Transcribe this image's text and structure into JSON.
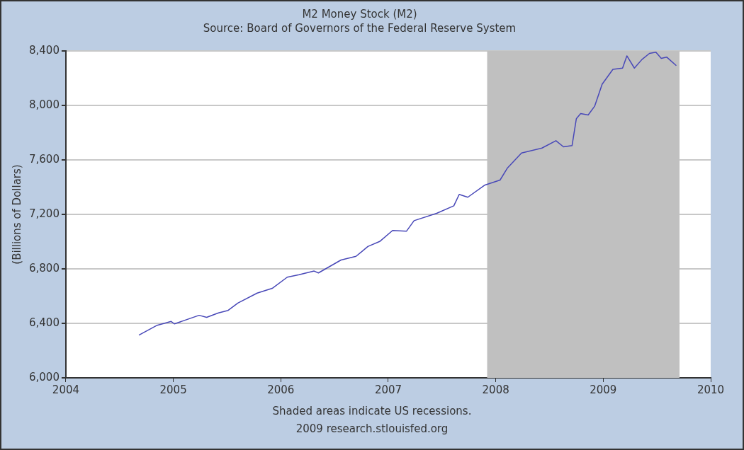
{
  "chart_data": {
    "type": "line",
    "title": "M2 Money Stock (M2)",
    "subtitle": "Source: Board of Governors of the Federal Reserve System",
    "ylabel": "(Billions of Dollars)",
    "x": [
      2004.68,
      2004.85,
      2004.98,
      2005.01,
      2005.24,
      2005.31,
      2005.42,
      2005.51,
      2005.6,
      2005.78,
      2005.92,
      2006.06,
      2006.17,
      2006.31,
      2006.35,
      2006.56,
      2006.7,
      2006.81,
      2006.92,
      2007.04,
      2007.17,
      2007.24,
      2007.45,
      2007.61,
      2007.66,
      2007.74,
      2007.9,
      2008.04,
      2008.11,
      2008.24,
      2008.43,
      2008.56,
      2008.63,
      2008.71,
      2008.75,
      2008.79,
      2008.86,
      2008.92,
      2008.99,
      2009.09,
      2009.18,
      2009.22,
      2009.29,
      2009.36,
      2009.43,
      2009.49,
      2009.54,
      2009.59,
      2009.68
    ],
    "series": [
      {
        "color": "#4848b8",
        "values": [
          6314,
          6386,
          6414,
          6396,
          6459,
          6444,
          6477,
          6495,
          6549,
          6622,
          6657,
          6739,
          6757,
          6784,
          6770,
          6865,
          6892,
          6964,
          7001,
          7082,
          7077,
          7154,
          7208,
          7263,
          7347,
          7326,
          7416,
          7452,
          7542,
          7651,
          7687,
          7741,
          7696,
          7705,
          7903,
          7940,
          7930,
          7994,
          8156,
          8265,
          8274,
          8364,
          8274,
          8337,
          8382,
          8391,
          8346,
          8355,
          8292
        ]
      }
    ],
    "xlim": [
      2004,
      2010
    ],
    "xticks": [
      2004,
      2005,
      2006,
      2007,
      2008,
      2009,
      2010
    ],
    "ylim": [
      6000,
      8400
    ],
    "yticks": [
      {
        "value": 6000,
        "label": "6,000"
      },
      {
        "value": 6400,
        "label": "6,400"
      },
      {
        "value": 6800,
        "label": "6,800"
      },
      {
        "value": 7200,
        "label": "7,200"
      },
      {
        "value": 7600,
        "label": "7,600"
      },
      {
        "value": 8000,
        "label": "8,000"
      },
      {
        "value": 8400,
        "label": "8,400"
      }
    ],
    "bands": [
      {
        "axis": "x",
        "from": 2007.92,
        "to": 2009.71,
        "color": "#c0c0c0"
      }
    ],
    "grid": "y",
    "legend": false,
    "marker": "none",
    "line_style": "solid",
    "annotations": [
      "Shaded areas indicate US recessions.",
      "2009 research.stlouisfed.org"
    ]
  }
}
